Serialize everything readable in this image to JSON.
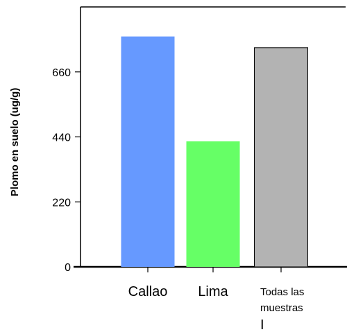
{
  "chart_data": {
    "type": "bar",
    "categories": [
      "Callao",
      "Lima",
      "Todas las muestras"
    ],
    "category_lines": [
      [
        "Callao"
      ],
      [
        "Lima"
      ],
      [
        "Todas las",
        "muestras"
      ]
    ],
    "values": [
      780,
      425,
      742
    ],
    "colors": [
      "#6699ff",
      "#66ff66",
      "#b3b3b3"
    ],
    "ylabel": "Plomo en suelo (ug/g)",
    "yticks": [
      0,
      220,
      440,
      660
    ],
    "ylim": [
      0,
      880
    ],
    "annotation": "I",
    "grid": false
  }
}
